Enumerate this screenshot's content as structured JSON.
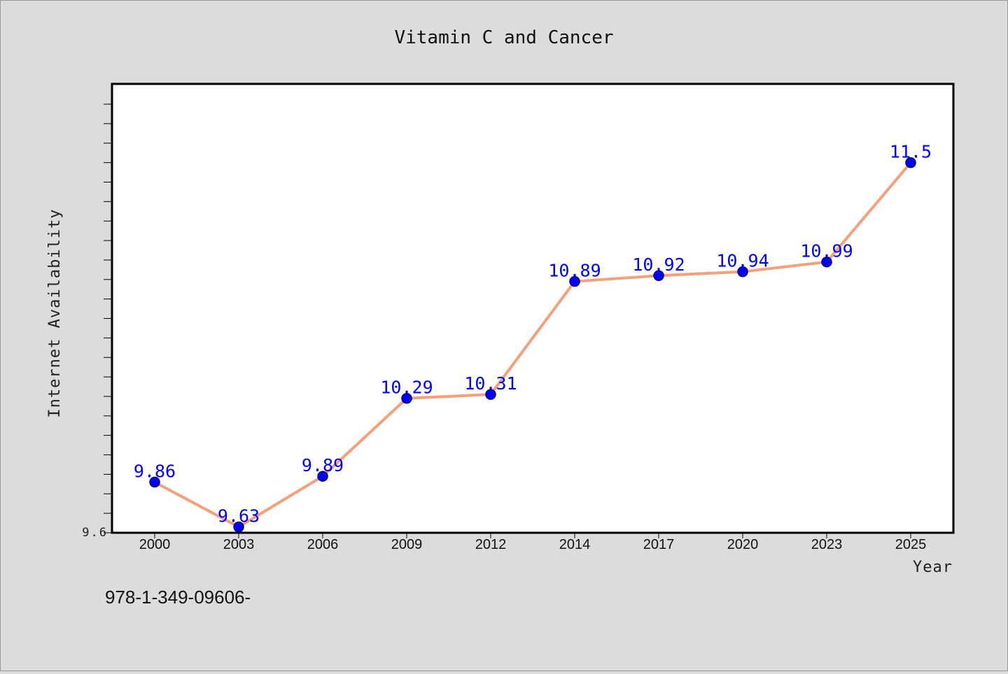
{
  "chart_data": {
    "type": "line",
    "title": "Vitamin C and Cancer",
    "xlabel": "Year",
    "ylabel": "Internet Availability",
    "categories": [
      "2000",
      "2003",
      "2006",
      "2009",
      "2012",
      "2014",
      "2017",
      "2020",
      "2023",
      "2025"
    ],
    "series": [
      {
        "values": [
          9.86,
          9.63,
          9.89,
          10.29,
          10.31,
          10.89,
          10.92,
          10.94,
          10.99,
          11.5
        ],
        "labels": [
          "9.86",
          "9.63",
          "9.89",
          "10.29",
          "10.31",
          "10.89",
          "10.92",
          "10.94",
          "10.99",
          "11.5"
        ]
      }
    ],
    "ylim": [
      9.6,
      11.8
    ],
    "ytick_labels": [
      "9.6"
    ],
    "grid": false,
    "colors": {
      "line": "#f4a07a",
      "marker": "#0000ff",
      "marker_edge": "#00006e",
      "data_label": "#0000ff",
      "background": "#dcdcdc",
      "plot_background": "#ffffff"
    }
  },
  "footer": {
    "isbn": "978-1-349-09606-"
  }
}
